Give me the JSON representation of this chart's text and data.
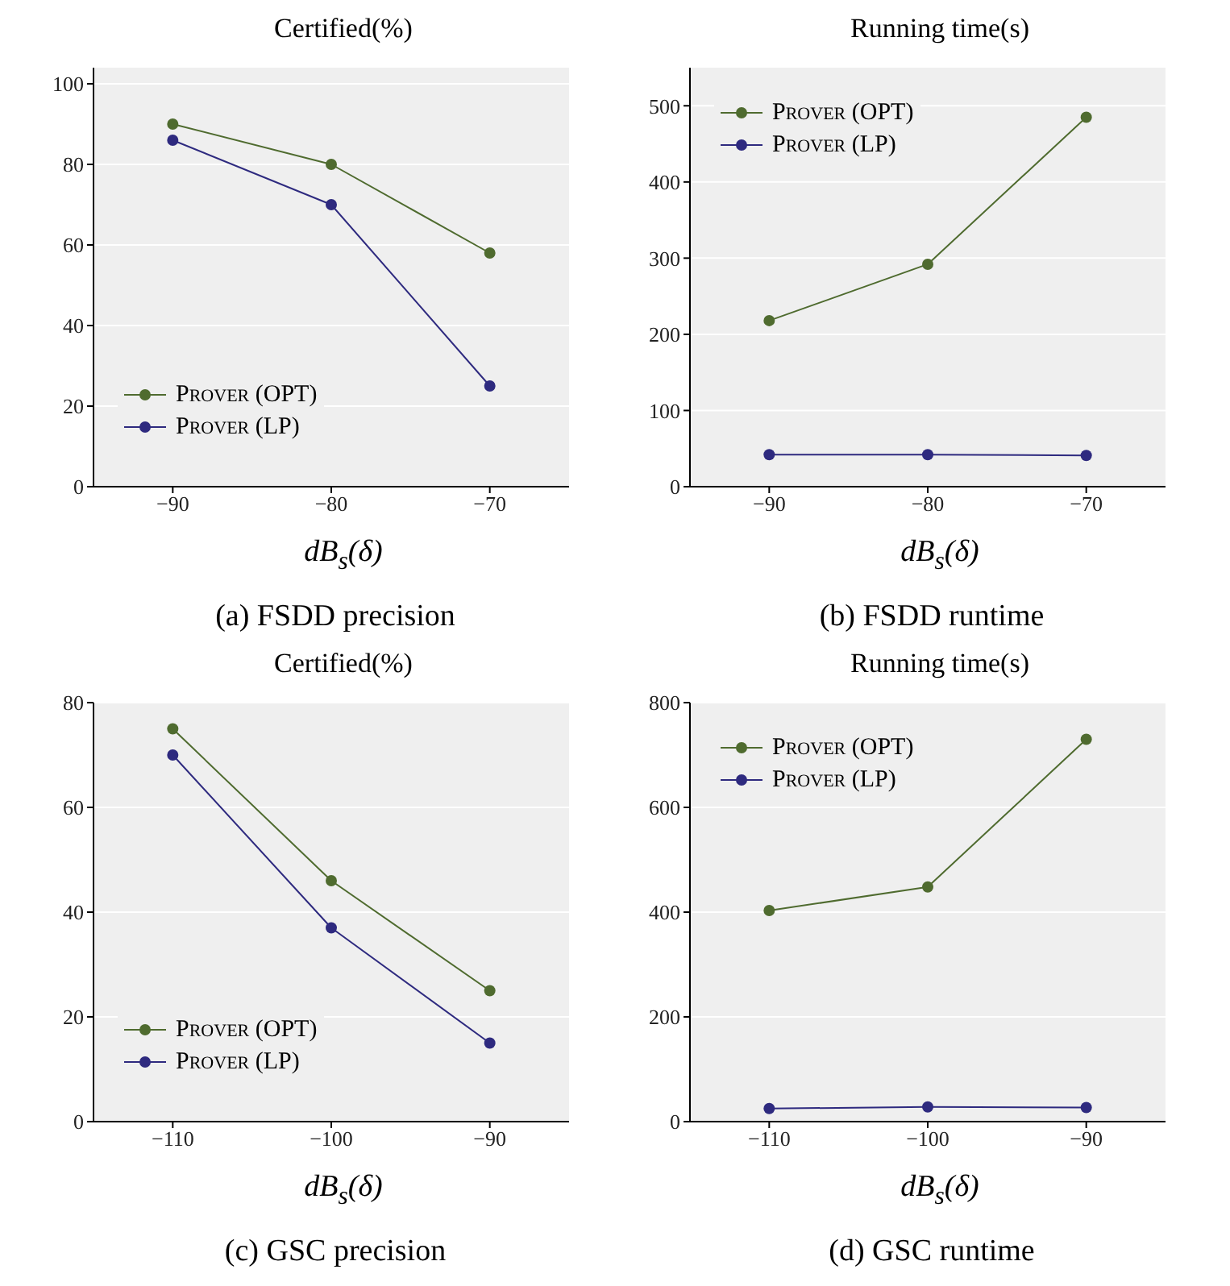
{
  "chart_data": [
    {
      "type": "line",
      "title": "Certified(%)",
      "xlabel": "dB$_{s}$(δ)",
      "annotations": [
        "(a) FSDD precision"
      ],
      "x": [
        -90,
        -80,
        -70
      ],
      "xlim": [
        -95,
        -65
      ],
      "xticks": [
        -90,
        -80,
        -70
      ],
      "ylim": [
        0,
        104
      ],
      "yticks": [
        0,
        20,
        40,
        60,
        80,
        100
      ],
      "grid": "y",
      "legend": "bottom left",
      "marker": "circle",
      "series": [
        {
          "name": "Prover (OPT)",
          "color": "#4f6b2f",
          "values": [
            90,
            80,
            58
          ]
        },
        {
          "name": "Prover (LP)",
          "color": "#2e2a7f",
          "values": [
            86,
            70,
            25
          ]
        }
      ]
    },
    {
      "type": "line",
      "title": "Running time(s)",
      "xlabel": "dB$_{s}$(δ)",
      "annotations": [
        "(b) FSDD runtime"
      ],
      "x": [
        -90,
        -80,
        -70
      ],
      "xlim": [
        -95,
        -65
      ],
      "xticks": [
        -90,
        -80,
        -70
      ],
      "ylim": [
        0,
        550
      ],
      "yticks": [
        0,
        100,
        200,
        300,
        400,
        500
      ],
      "grid": "y",
      "legend": "top left",
      "marker": "circle",
      "series": [
        {
          "name": "Prover (OPT)",
          "color": "#4f6b2f",
          "values": [
            218,
            292,
            485
          ]
        },
        {
          "name": "Prover (LP)",
          "color": "#2e2a7f",
          "values": [
            42,
            42,
            41
          ]
        }
      ]
    },
    {
      "type": "line",
      "title": "Certified(%)",
      "xlabel": "dB$_{s}$(δ)",
      "annotations": [
        "(c) GSC precision"
      ],
      "x": [
        -110,
        -100,
        -90
      ],
      "xlim": [
        -115,
        -85
      ],
      "xticks": [
        -110,
        -100,
        -90
      ],
      "ylim": [
        0,
        80
      ],
      "yticks": [
        0,
        20,
        40,
        60,
        80
      ],
      "grid": "y",
      "legend": "bottom left",
      "marker": "circle",
      "series": [
        {
          "name": "Prover (OPT)",
          "color": "#4f6b2f",
          "values": [
            75,
            46,
            25
          ]
        },
        {
          "name": "Prover (LP)",
          "color": "#2e2a7f",
          "values": [
            70,
            37,
            15
          ]
        }
      ]
    },
    {
      "type": "line",
      "title": "Running time(s)",
      "xlabel": "dB$_{s}$(δ)",
      "annotations": [
        "(d) GSC runtime"
      ],
      "x": [
        -110,
        -100,
        -90
      ],
      "xlim": [
        -115,
        -85
      ],
      "xticks": [
        -110,
        -100,
        -90
      ],
      "ylim": [
        0,
        800
      ],
      "yticks": [
        0,
        200,
        400,
        600,
        800
      ],
      "grid": "y",
      "legend": "top left",
      "marker": "circle",
      "series": [
        {
          "name": "Prover (OPT)",
          "color": "#4f6b2f",
          "values": [
            403,
            448,
            730
          ]
        },
        {
          "name": "Prover (LP)",
          "color": "#2e2a7f",
          "values": [
            25,
            28,
            27
          ]
        }
      ]
    }
  ]
}
